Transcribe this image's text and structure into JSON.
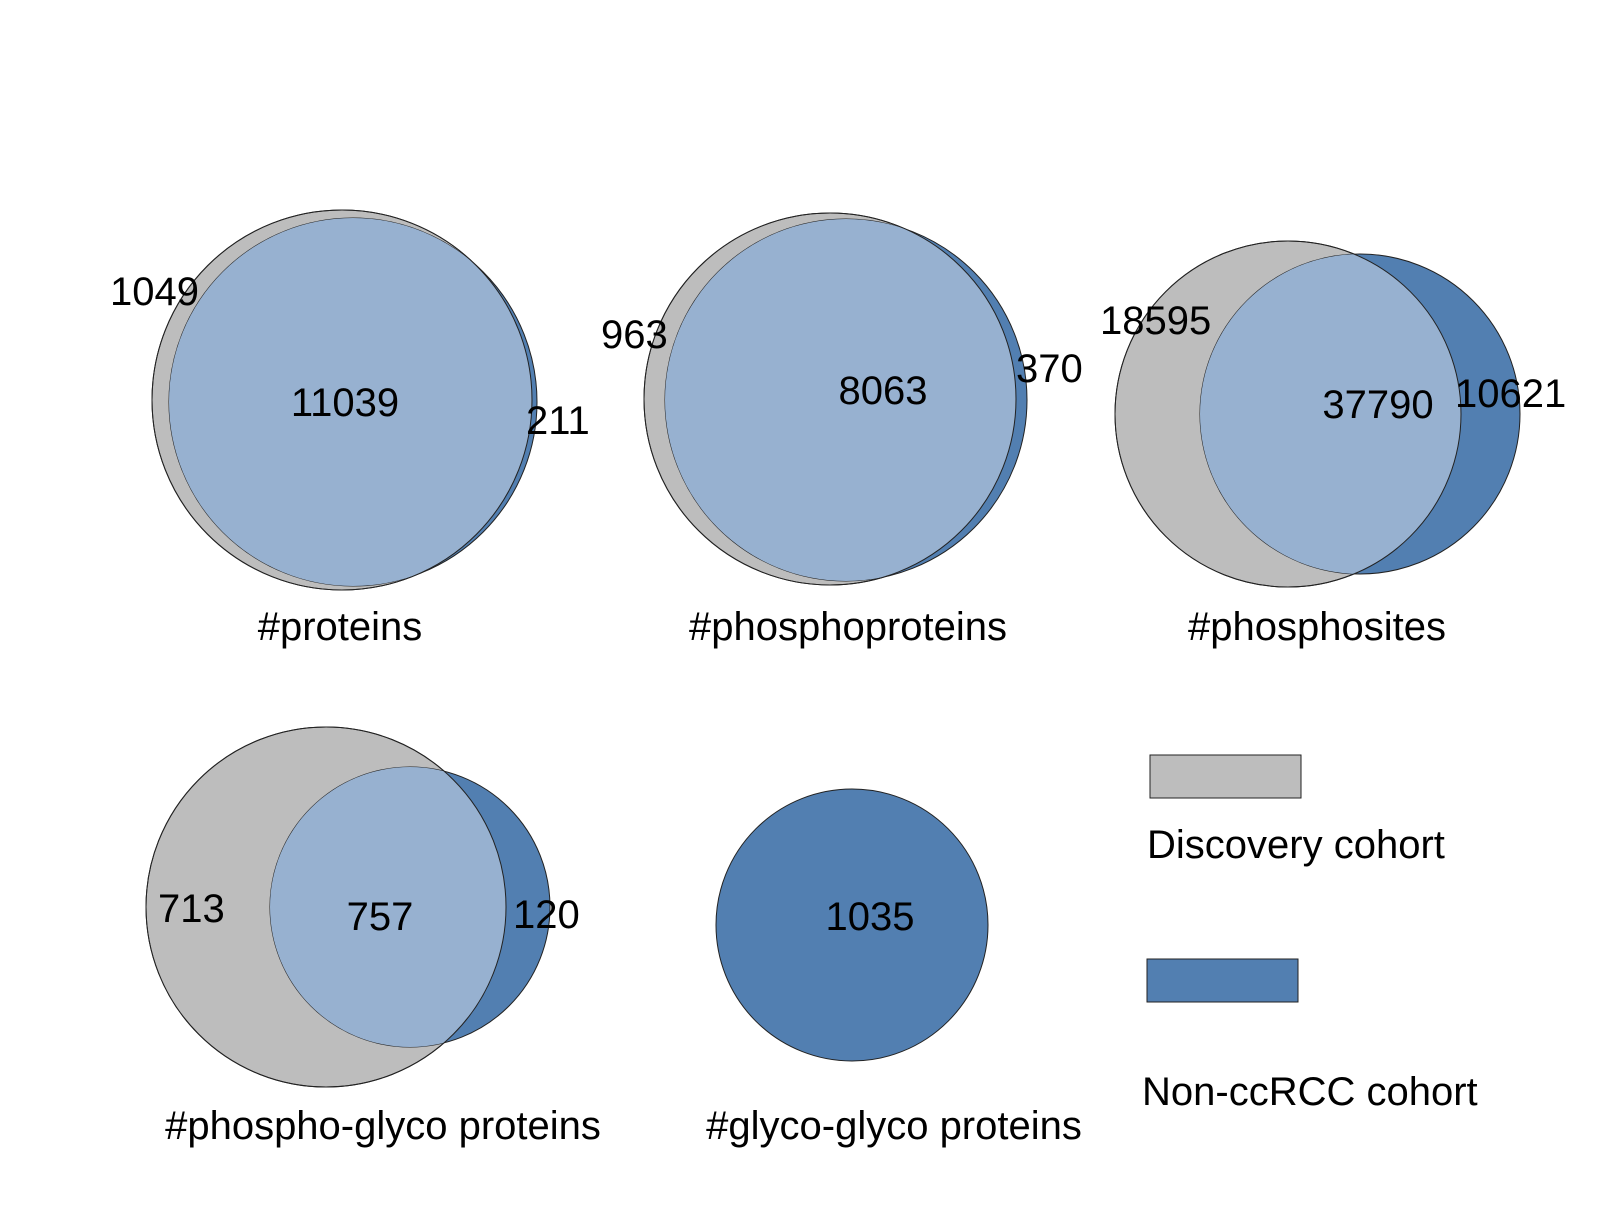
{
  "colors": {
    "discovery": "#bdbdbd",
    "non_ccrcc": "#527fb1",
    "overlap": "#97b1d0"
  },
  "legend": {
    "discovery_label": "Discovery cohort",
    "non_ccrcc_label": "Non-ccRCC cohort"
  },
  "venns": [
    {
      "id": "proteins",
      "caption": "#proteins",
      "discovery_only": "1049",
      "shared": "11039",
      "non_ccrcc_only": "211"
    },
    {
      "id": "phosphoproteins",
      "caption": "#phosphoproteins",
      "discovery_only": "963",
      "shared": "8063",
      "non_ccrcc_only": "370"
    },
    {
      "id": "phosphosites",
      "caption": "#phosphosites",
      "discovery_only": "18595",
      "shared": "37790",
      "non_ccrcc_only": "10621"
    },
    {
      "id": "phospho-glyco",
      "caption": "#phospho-glyco proteins",
      "discovery_only": "713",
      "shared": "757",
      "non_ccrcc_only": "120"
    },
    {
      "id": "glyco-glyco",
      "caption": "#glyco-glyco proteins",
      "discovery_only": "",
      "shared": "1035",
      "non_ccrcc_only": ""
    }
  ]
}
